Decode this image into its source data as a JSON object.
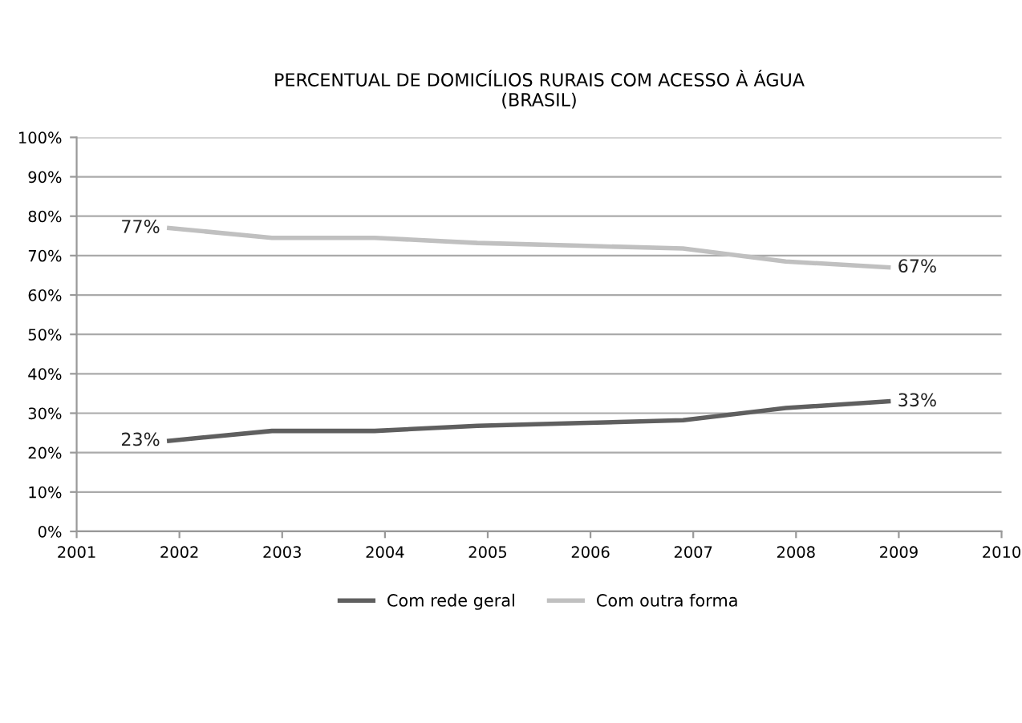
{
  "chart_data": {
    "type": "line",
    "title": "PERCENTUAL DE DOMICÍLIOS RURAIS COM ACESSO À ÁGUA\n(BRASIL)",
    "x": [
      2001.9,
      2002.9,
      2003.9,
      2004.9,
      2005.9,
      2006.9,
      2007.9,
      2008.9
    ],
    "series": [
      {
        "name": "Com rede geral",
        "color": "#5f5f5f",
        "values": [
          23,
          25.5,
          25.5,
          26.8,
          27.5,
          28.2,
          31.3,
          33
        ],
        "value_labels": [
          "23%",
          null,
          null,
          null,
          null,
          null,
          null,
          "33%"
        ]
      },
      {
        "name": "Com outra forma",
        "color": "#c0c0c0",
        "values": [
          77,
          74.5,
          74.5,
          73.2,
          72.5,
          71.8,
          68.5,
          67
        ],
        "value_labels": [
          "77%",
          null,
          null,
          null,
          null,
          null,
          null,
          "67%"
        ]
      }
    ],
    "xlim": [
      2001,
      2010
    ],
    "xticks": [
      2001,
      2002,
      2003,
      2004,
      2005,
      2006,
      2007,
      2008,
      2009,
      2010
    ],
    "ylim": [
      0,
      100
    ],
    "yticks": [
      {
        "value": 0,
        "label": "0%"
      },
      {
        "value": 10,
        "label": "10%"
      },
      {
        "value": 20,
        "label": "20%"
      },
      {
        "value": 30,
        "label": "30%"
      },
      {
        "value": 40,
        "label": "40%"
      },
      {
        "value": 50,
        "label": "50%"
      },
      {
        "value": 60,
        "label": "60%"
      },
      {
        "value": 70,
        "label": "70%"
      },
      {
        "value": 80,
        "label": "80%"
      },
      {
        "value": 90,
        "label": "90%"
      },
      {
        "value": 100,
        "label": "100%"
      }
    ],
    "grid": "y",
    "legend": "bottom",
    "marker": "none",
    "line_style": "solid"
  }
}
